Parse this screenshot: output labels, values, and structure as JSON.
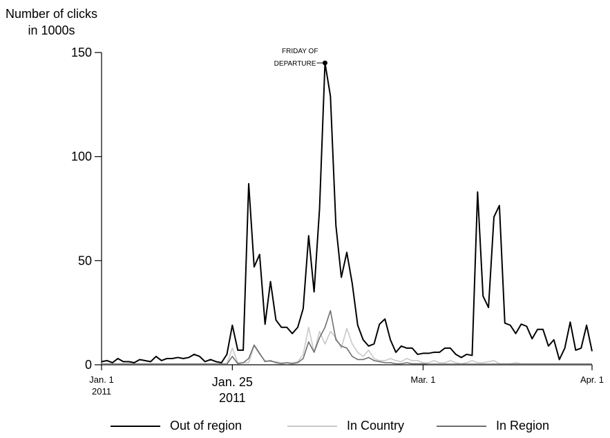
{
  "chart_data": {
    "type": "line",
    "ylabel_line1": "Number of clicks",
    "ylabel_line2": "in 1000s",
    "xlabel": "",
    "ylim": [
      0,
      150
    ],
    "yticks": [
      0,
      50,
      100,
      150
    ],
    "xlim": [
      0,
      90
    ],
    "xticks": [
      {
        "x": 0,
        "line1": "Jan. 1",
        "line2": "2011",
        "size": "small"
      },
      {
        "x": 24,
        "line1": "Jan. 25",
        "line2": "2011",
        "size": "big"
      },
      {
        "x": 59,
        "line1": "Mar. 1",
        "line2": "",
        "size": "small"
      },
      {
        "x": 90,
        "line1": "Apr. 1",
        "line2": "",
        "size": "small"
      }
    ],
    "annotation": {
      "x": 41,
      "y": 145,
      "line1": "FRIDAY OF",
      "line2": "DEPARTURE"
    },
    "legend_position": "bottom",
    "colors": {
      "out": "#000000",
      "country": "#c8c8c8",
      "region": "#6e6e6e"
    },
    "series": [
      {
        "name": "Out of region",
        "key": "out",
        "values": [
          1.5,
          2,
          1,
          3,
          1.5,
          1.5,
          1,
          2.5,
          2,
          1.5,
          4,
          2,
          3,
          3,
          3.5,
          3,
          3.5,
          5,
          4,
          1.5,
          2.5,
          1.5,
          1,
          5,
          19,
          7,
          7,
          87,
          47,
          53,
          19.5,
          40,
          21.5,
          18,
          18,
          15,
          18,
          27,
          62,
          35,
          75,
          145,
          129,
          67,
          42,
          54,
          39,
          19,
          12,
          9,
          10,
          19.5,
          22,
          12,
          6,
          9,
          8,
          8,
          5,
          5.5,
          5.5,
          6,
          6,
          8,
          8,
          5,
          3.5,
          5,
          4.5,
          83,
          33,
          27.5,
          71,
          76.5,
          20,
          19,
          15,
          19.5,
          18.5,
          12.5,
          17,
          17,
          9,
          12,
          2.5,
          8,
          20.5,
          7,
          8,
          19,
          6.5
        ]
      },
      {
        "name": "In Country",
        "key": "country",
        "values": [
          0.5,
          0.5,
          0.5,
          0.5,
          0.5,
          0.5,
          0.5,
          0.5,
          0.5,
          0.5,
          0.5,
          0.5,
          0.5,
          0.5,
          0.5,
          0.5,
          0.5,
          0.5,
          0.5,
          0.5,
          0.5,
          0.5,
          0.5,
          0.5,
          8,
          1,
          1,
          1,
          9,
          5,
          2,
          1.5,
          1.5,
          1,
          1,
          1,
          1.5,
          5,
          18,
          6,
          16,
          10,
          16,
          13,
          8,
          17.5,
          10,
          6,
          4,
          7,
          3,
          2,
          2,
          3,
          2,
          1.5,
          3,
          2,
          2,
          1,
          1,
          2,
          1,
          1,
          2,
          1,
          0.5,
          1,
          2,
          1,
          1,
          1.5,
          2,
          0.5,
          0.5,
          0.5,
          1,
          0.5,
          0.5,
          0.5,
          0.5,
          0.5,
          0.5,
          0.5,
          0.5,
          0.5,
          0.5,
          0.5,
          0.5,
          0.5,
          0.5
        ]
      },
      {
        "name": "In Region",
        "key": "region",
        "values": [
          0.3,
          0.3,
          0.3,
          0.3,
          0.3,
          0.3,
          0.3,
          0.3,
          0.3,
          0.3,
          0.3,
          0.3,
          0.3,
          0.3,
          0.3,
          0.3,
          0.3,
          0.3,
          0.3,
          0.3,
          0.3,
          0.3,
          0.3,
          0.3,
          4,
          0.5,
          1,
          3,
          9.5,
          5.5,
          1.5,
          2,
          1,
          0.5,
          1,
          0.5,
          1,
          3,
          11,
          6,
          13,
          18,
          26,
          12,
          9,
          8,
          4,
          2.5,
          2.5,
          3.5,
          2,
          1.5,
          1,
          1,
          0.5,
          0.5,
          1,
          0.5,
          0.5,
          0.5,
          0.3,
          0.3,
          0.3,
          0.3,
          0.3,
          0.3,
          0.3,
          0.3,
          0.3,
          0.3,
          0.3,
          0.3,
          0.3,
          0.3,
          0.3,
          0.3,
          0.3,
          0.3,
          0.3,
          0.3,
          0.3,
          0.3,
          0.3,
          0.3,
          0.3,
          0.3,
          0.3,
          0.3,
          0.3,
          0.3,
          0.3
        ]
      }
    ]
  }
}
